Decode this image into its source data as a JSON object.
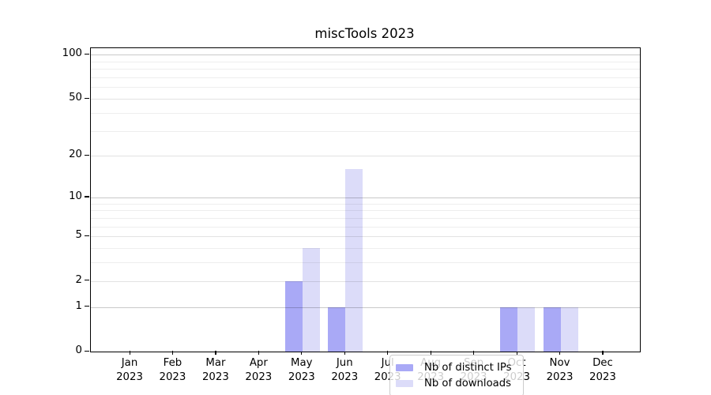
{
  "title": "miscTools 2023",
  "chart_data": {
    "type": "bar",
    "title": "miscTools 2023",
    "categories": [
      "Jan",
      "Feb",
      "Mar",
      "Apr",
      "May",
      "Jun",
      "Jul",
      "Aug",
      "Sep",
      "Oct",
      "Nov",
      "Dec"
    ],
    "year": "2023",
    "series": [
      {
        "name": "Nb of distinct IPs",
        "color": "#a9a9f6",
        "values": [
          0,
          0,
          0,
          0,
          2,
          1,
          0,
          0,
          0,
          1,
          1,
          0
        ]
      },
      {
        "name": "Nb of downloads",
        "color": "#dcdcf9",
        "values": [
          0,
          0,
          0,
          0,
          4,
          16,
          0,
          0,
          0,
          1,
          1,
          0
        ]
      }
    ],
    "xlabel": "",
    "ylabel": "",
    "yscale": "log1p",
    "ylim": [
      0,
      111
    ],
    "yticks": [
      0,
      1,
      2,
      5,
      10,
      20,
      50,
      100
    ],
    "major_grid_values": [
      1,
      10,
      100
    ],
    "labeled_minor_grid_values": [
      2,
      5,
      20,
      50
    ],
    "minor_grid_values": [
      3,
      4,
      6,
      7,
      8,
      9,
      30,
      40,
      60,
      70,
      80,
      90
    ],
    "grid": true,
    "legend_position": "lower center"
  },
  "colors": {
    "spine": "#000000",
    "background": "#ffffff",
    "major_grid": "#c9c9c9",
    "minor_grid": "#efefef",
    "legend_border": "#cccccc"
  }
}
